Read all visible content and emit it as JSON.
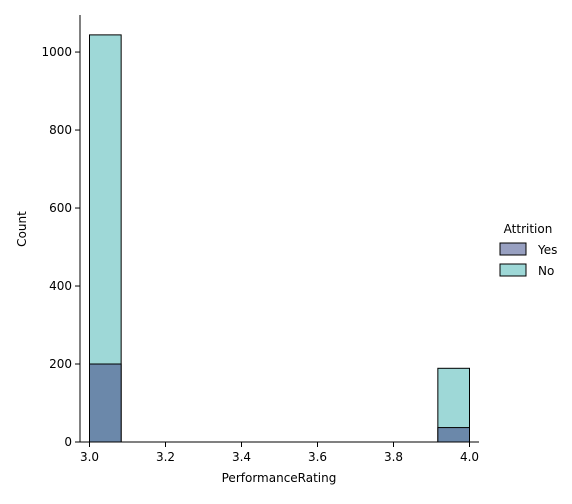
{
  "chart_data": {
    "type": "bar",
    "title": "",
    "xlabel": "PerformanceRating",
    "ylabel": "Count",
    "xlim": [
      2.975,
      4.025
    ],
    "ylim": [
      0,
      1095
    ],
    "x_ticks": [
      3.0,
      3.2,
      3.4,
      3.6,
      3.8,
      4.0
    ],
    "x_tick_labels": [
      "3.0",
      "3.2",
      "3.4",
      "3.6",
      "3.8",
      "4.0"
    ],
    "y_ticks": [
      0,
      200,
      400,
      600,
      800,
      1000
    ],
    "y_tick_labels": [
      "0",
      "200",
      "400",
      "600",
      "800",
      "1000"
    ],
    "grid": false,
    "legend": {
      "title": "Attrition",
      "placement": "right",
      "entries": [
        "Yes",
        "No"
      ]
    },
    "bin_edges": [
      3.0,
      3.0833,
      3.1667,
      3.25,
      3.3333,
      3.4167,
      3.5,
      3.5833,
      3.6667,
      3.75,
      3.8333,
      3.9167,
      4.0
    ],
    "series": [
      {
        "name": "No",
        "color": "#9ed8d7",
        "values": [
          1044,
          0,
          0,
          0,
          0,
          0,
          0,
          0,
          0,
          0,
          0,
          189
        ]
      },
      {
        "name": "Yes",
        "color": "#6b88aa",
        "values": [
          200,
          0,
          0,
          0,
          0,
          0,
          0,
          0,
          0,
          0,
          0,
          37
        ]
      }
    ],
    "legend_colors": {
      "Yes": "#98a0c1",
      "No": "#9ed8d7"
    },
    "edge_color": "#000000"
  }
}
